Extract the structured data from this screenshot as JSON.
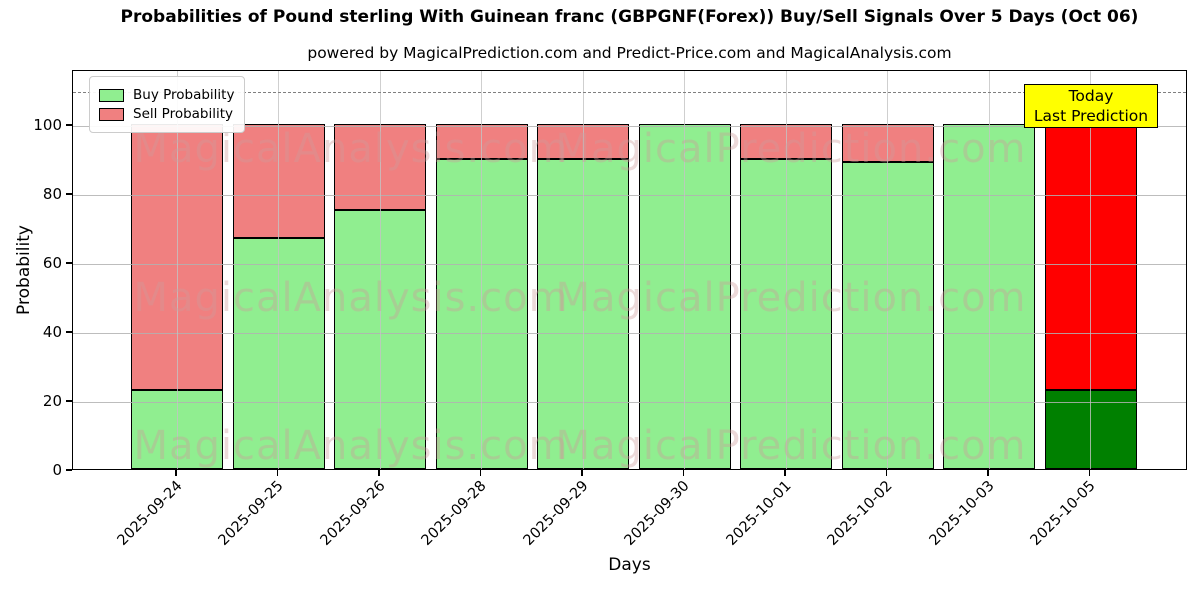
{
  "chart_data": {
    "type": "bar",
    "stacked": true,
    "title": "Probabilities of Pound sterling With Guinean franc (GBPGNF(Forex)) Buy/Sell Signals Over 5 Days (Oct 06)",
    "subtitle": "powered by MagicalPrediction.com and Predict-Price.com and MagicalAnalysis.com",
    "xlabel": "Days",
    "ylabel": "Probability",
    "categories": [
      "2025-09-24",
      "2025-09-25",
      "2025-09-26",
      "2025-09-28",
      "2025-09-29",
      "2025-09-30",
      "2025-10-01",
      "2025-10-02",
      "2025-10-03",
      "2025-10-05"
    ],
    "series": [
      {
        "name": "Buy Probability",
        "values": [
          23,
          67,
          75,
          90,
          90,
          100,
          90,
          89,
          100,
          23
        ],
        "colors": [
          "#90ee90",
          "#90ee90",
          "#90ee90",
          "#90ee90",
          "#90ee90",
          "#90ee90",
          "#90ee90",
          "#90ee90",
          "#90ee90",
          "#008000"
        ],
        "legend_color": "#90ee90"
      },
      {
        "name": "Sell Probability",
        "values": [
          77,
          33,
          25,
          10,
          10,
          0,
          10,
          11,
          0,
          77
        ],
        "colors": [
          "#f08080",
          "#f08080",
          "#f08080",
          "#f08080",
          "#f08080",
          "#f08080",
          "#f08080",
          "#f08080",
          "#f08080",
          "#ff0000"
        ],
        "legend_color": "#f08080"
      }
    ],
    "ylim": [
      0,
      116
    ],
    "yticks": [
      0,
      20,
      40,
      60,
      80,
      100
    ],
    "grid": true,
    "legend_position": "upper-left",
    "dashed_line_y": 110,
    "bar_edge_color": "#000000",
    "annotation": {
      "lines": [
        "Today",
        "Last Prediction"
      ],
      "bg_color": "#ffff00",
      "border_color": "#000000"
    },
    "watermarks": [
      "MagicalAnalysis.com",
      "MagicalPrediction.com"
    ]
  }
}
